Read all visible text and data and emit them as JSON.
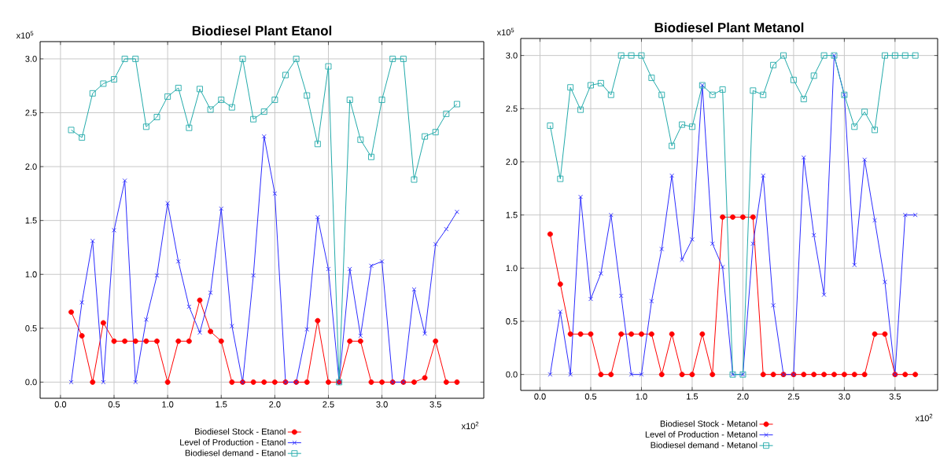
{
  "chart_data": [
    {
      "type": "line",
      "title": "Biodiesel Plant Etanol",
      "xlabel": "x10$^{2}$",
      "ylabel": "x10$^{5}$",
      "x": [
        0.1,
        0.2,
        0.3,
        0.4,
        0.5,
        0.6,
        0.7,
        0.8,
        0.9,
        1.0,
        1.1,
        1.2,
        1.3,
        1.4,
        1.5,
        1.6,
        1.7,
        1.8,
        1.9,
        2.0,
        2.1,
        2.2,
        2.3,
        2.4,
        2.5,
        2.6,
        2.7,
        2.8,
        2.9,
        3.0,
        3.1,
        3.2,
        3.3,
        3.4,
        3.5,
        3.6,
        3.7
      ],
      "series": [
        {
          "name": "Biodiesel Stock - Etanol",
          "color": "#ff0000",
          "marker": "circle",
          "values": [
            0.65,
            0.43,
            0,
            0.55,
            0.38,
            0.38,
            0.38,
            0.38,
            0.38,
            0,
            0.38,
            0.38,
            0.76,
            0.47,
            0.38,
            0,
            0,
            0,
            0,
            0,
            0,
            0,
            0,
            0.57,
            0,
            0,
            0.38,
            0.38,
            0,
            0,
            0,
            0,
            0,
            0.04,
            0.38,
            0,
            0
          ]
        },
        {
          "name": "Level of Production - Etanol",
          "color": "#2b2bff",
          "marker": "cross",
          "values": [
            0,
            0.74,
            1.31,
            0,
            1.41,
            1.87,
            0,
            0.58,
            0.99,
            1.66,
            1.12,
            0.7,
            0.46,
            0.83,
            1.61,
            0.52,
            0,
            0.99,
            2.28,
            1.75,
            0,
            0,
            0.49,
            1.53,
            1.05,
            0,
            1.05,
            0.43,
            1.08,
            1.12,
            0,
            0,
            0.86,
            0.45,
            1.28,
            1.42,
            1.58
          ]
        },
        {
          "name": "Biodiesel demand - Etanol",
          "color": "#22aaaa",
          "marker": "square",
          "values": [
            2.34,
            2.27,
            2.68,
            2.77,
            2.81,
            3.0,
            3.0,
            2.37,
            2.46,
            2.65,
            2.73,
            2.36,
            2.72,
            2.53,
            2.62,
            2.55,
            3.0,
            2.44,
            2.51,
            2.62,
            2.85,
            3.0,
            2.66,
            2.21,
            2.93,
            0,
            2.62,
            2.25,
            2.09,
            2.62,
            3.0,
            3.0,
            1.88,
            2.28,
            2.32,
            2.49,
            2.58
          ]
        }
      ],
      "xlim": [
        -0.19,
        3.95
      ],
      "ylim": [
        -0.15,
        3.16
      ],
      "xticks": [
        {
          "value": 0,
          "label": "0.0"
        },
        {
          "value": 0.5,
          "label": "0.5"
        },
        {
          "value": 1,
          "label": "1.0"
        },
        {
          "value": 1.5,
          "label": "1.5"
        },
        {
          "value": 2,
          "label": "2.0"
        },
        {
          "value": 2.5,
          "label": "2.5"
        },
        {
          "value": 3,
          "label": "3.0"
        },
        {
          "value": 3.5,
          "label": "3.5"
        }
      ],
      "yticks": [
        {
          "value": 0,
          "label": "0.0"
        },
        {
          "value": 0.5,
          "label": "0.5"
        },
        {
          "value": 1,
          "label": "1.0"
        },
        {
          "value": 1.5,
          "label": "1.5"
        },
        {
          "value": 2,
          "label": "2.0"
        },
        {
          "value": 2.5,
          "label": "2.5"
        },
        {
          "value": 3,
          "label": "3.0"
        }
      ],
      "grid": true,
      "legend": "bottom"
    },
    {
      "type": "line",
      "title": "Biodiesel Plant Metanol",
      "xlabel": "x10$^{2}$",
      "ylabel": "x10$^{5}$",
      "x": [
        0.1,
        0.2,
        0.3,
        0.4,
        0.5,
        0.6,
        0.7,
        0.8,
        0.9,
        1.0,
        1.1,
        1.2,
        1.3,
        1.4,
        1.5,
        1.6,
        1.7,
        1.8,
        1.9,
        2.0,
        2.1,
        2.2,
        2.3,
        2.4,
        2.5,
        2.6,
        2.7,
        2.8,
        2.9,
        3.0,
        3.1,
        3.2,
        3.3,
        3.4,
        3.5,
        3.6,
        3.7
      ],
      "series": [
        {
          "name": "Biodiesel Stock - Metanol",
          "color": "#ff0000",
          "marker": "circle",
          "values": [
            1.32,
            0.85,
            0.38,
            0.38,
            0.38,
            0,
            0,
            0.38,
            0.38,
            0.38,
            0.38,
            0,
            0.38,
            0,
            0,
            0.38,
            0,
            1.48,
            1.48,
            1.48,
            1.48,
            0,
            0,
            0,
            0,
            0,
            0,
            0,
            0,
            0,
            0,
            0,
            0.38,
            0.38,
            0,
            0,
            0
          ]
        },
        {
          "name": "Level of Production - Metanol",
          "color": "#2b2bff",
          "marker": "cross",
          "values": [
            0,
            0.59,
            0,
            1.67,
            0.71,
            0.95,
            1.5,
            0.74,
            0,
            0,
            0.69,
            1.18,
            1.87,
            1.08,
            1.27,
            2.72,
            1.23,
            1.01,
            0,
            0,
            1.23,
            1.87,
            0.65,
            0,
            0,
            2.04,
            1.31,
            0.75,
            3.0,
            2.63,
            1.03,
            2.02,
            1.45,
            0.87,
            0,
            1.5,
            1.5
          ]
        },
        {
          "name": "Biodiesel demand - Metanol",
          "color": "#22aaaa",
          "marker": "square",
          "values": [
            2.34,
            1.84,
            2.7,
            2.49,
            2.72,
            2.74,
            2.63,
            3.0,
            3.0,
            3.0,
            2.79,
            2.63,
            2.15,
            2.35,
            2.33,
            2.72,
            2.63,
            2.68,
            0,
            0,
            2.67,
            2.63,
            2.91,
            3.0,
            2.77,
            2.59,
            2.81,
            3.0,
            3.0,
            2.63,
            2.33,
            2.47,
            2.3,
            3.0,
            3.0,
            3.0,
            3.0
          ]
        }
      ],
      "xlim": [
        -0.19,
        3.92
      ],
      "ylim": [
        -0.15,
        3.16
      ],
      "xticks": [
        {
          "value": 0,
          "label": "0.0"
        },
        {
          "value": 0.5,
          "label": "0.5"
        },
        {
          "value": 1,
          "label": "1.0"
        },
        {
          "value": 1.5,
          "label": "1.5"
        },
        {
          "value": 2,
          "label": "2.0"
        },
        {
          "value": 2.5,
          "label": "2.5"
        },
        {
          "value": 3,
          "label": "3.0"
        },
        {
          "value": 3.5,
          "label": "3.5"
        }
      ],
      "yticks": [
        {
          "value": 0,
          "label": "0.0"
        },
        {
          "value": 0.5,
          "label": "0.5"
        },
        {
          "value": 1,
          "label": "1.0"
        },
        {
          "value": 1.5,
          "label": "1.5"
        },
        {
          "value": 2,
          "label": "2.0"
        },
        {
          "value": 2.5,
          "label": "2.5"
        },
        {
          "value": 3,
          "label": "3.0"
        }
      ],
      "grid": true,
      "legend": "bottom"
    }
  ]
}
